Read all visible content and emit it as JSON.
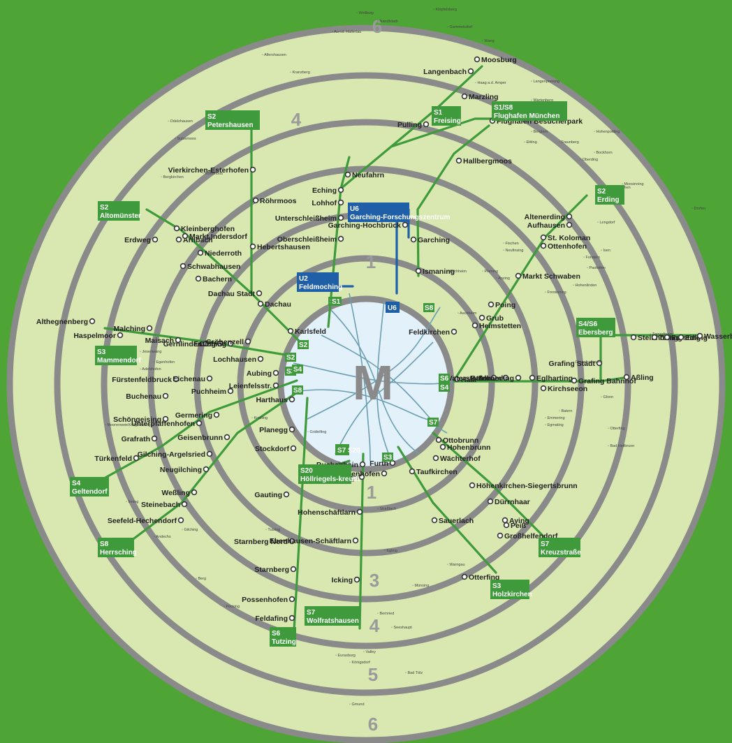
{
  "center_letter": "M",
  "zones": [
    {
      "label": "6",
      "id": "top"
    },
    {
      "label": "4",
      "id": "n"
    },
    {
      "label": "1",
      "id": "ne"
    },
    {
      "label": "1",
      "id": "s"
    },
    {
      "label": "3",
      "id": "s3"
    },
    {
      "label": "4",
      "id": "s4"
    },
    {
      "label": "5",
      "id": "s5"
    },
    {
      "label": "6",
      "id": "bottom"
    }
  ],
  "colors": {
    "background": "#4fa436",
    "ring_fill": "#d8e8b0",
    "center": "#e2f1fa",
    "sbahn": "#3e9a3a",
    "ubahn": "#1f5fa8",
    "ring": "#8a8a8a"
  },
  "terminal_badges": [
    {
      "id": "moosburg-none",
      "line": "",
      "name": ""
    },
    {
      "id": "petershausen",
      "line": "S2",
      "name": "Petershausen"
    },
    {
      "id": "freising",
      "line": "S1",
      "name": "Freising"
    },
    {
      "id": "flughafen",
      "line": "S1/S8",
      "name": "Flughafen München"
    },
    {
      "id": "erding",
      "line": "S2",
      "name": "Erding"
    },
    {
      "id": "altomuenster",
      "line": "S2",
      "name": "Altomünster"
    },
    {
      "id": "garching",
      "line": "U6",
      "name": "Garching-Forschungszentrum"
    },
    {
      "id": "feldmoching",
      "line": "U2",
      "name": "Feldmoching"
    },
    {
      "id": "u6",
      "line": "U6",
      "name": ""
    },
    {
      "id": "ebersberg",
      "line": "S4/S6",
      "name": "Ebersberg"
    },
    {
      "id": "mammendorf",
      "line": "S3",
      "name": "Mammendorf"
    },
    {
      "id": "geltendorf",
      "line": "S4",
      "name": "Geltendorf"
    },
    {
      "id": "herrsching",
      "line": "S8",
      "name": "Herrsching"
    },
    {
      "id": "tutzing",
      "line": "S6",
      "name": "Tutzing"
    },
    {
      "id": "wolfratshausen",
      "line": "S7",
      "name": "Wolfratshausen"
    },
    {
      "id": "holzkirchen",
      "line": "S3",
      "name": "Holzkirchen"
    },
    {
      "id": "kreuzstrasse",
      "line": "S7",
      "name": "Kreuzstraße"
    },
    {
      "id": "hoellriegelskreuth",
      "line": "S20",
      "name": "Höllriegels-kreuth"
    },
    {
      "id": "s20",
      "line": "S7 S20",
      "name": ""
    }
  ],
  "line_badges": [
    "S1",
    "S8",
    "S2",
    "S2",
    "S3",
    "S4",
    "S8",
    "S6",
    "S4",
    "S3",
    "S7",
    "S1"
  ],
  "stations": [
    {
      "name": "Moosburg"
    },
    {
      "name": "Langenbach"
    },
    {
      "name": "Marzling"
    },
    {
      "name": "Pulling"
    },
    {
      "name": "Flughafen Besucherpark"
    },
    {
      "name": "Hallbergmoos"
    },
    {
      "name": "Neufahrn"
    },
    {
      "name": "Eching"
    },
    {
      "name": "Lohhof"
    },
    {
      "name": "Unterschleißheim"
    },
    {
      "name": "Oberschleißheim"
    },
    {
      "name": "Garching-Hochbrück"
    },
    {
      "name": "Garching"
    },
    {
      "name": "Ismaning"
    },
    {
      "name": "Altenerding"
    },
    {
      "name": "Aufhausen"
    },
    {
      "name": "St. Koloman"
    },
    {
      "name": "Ottenhofen"
    },
    {
      "name": "Markt Schwaben"
    },
    {
      "name": "Poing"
    },
    {
      "name": "Grub"
    },
    {
      "name": "Heimstetten"
    },
    {
      "name": "Feldkirchen"
    },
    {
      "name": "Vierkirchen-Esterhofen"
    },
    {
      "name": "Röhrmoos"
    },
    {
      "name": "Hebertshausen"
    },
    {
      "name": "Dachau Stadt"
    },
    {
      "name": "Dachau"
    },
    {
      "name": "Karlsfeld"
    },
    {
      "name": "Kleinberghofen"
    },
    {
      "name": "Erdweg"
    },
    {
      "name": "Arnbach"
    },
    {
      "name": "Markt Indersdorf"
    },
    {
      "name": "Niederroth"
    },
    {
      "name": "Schwabhausen"
    },
    {
      "name": "Bachern"
    },
    {
      "name": "Althegnenberg"
    },
    {
      "name": "Haspelmoor"
    },
    {
      "name": "Malching"
    },
    {
      "name": "Maisach"
    },
    {
      "name": "Gernlinden"
    },
    {
      "name": "Esting"
    },
    {
      "name": "Olching"
    },
    {
      "name": "Gröbenzell"
    },
    {
      "name": "Lochhausen"
    },
    {
      "name": "Fürstenfeldbruck"
    },
    {
      "name": "Buchenau"
    },
    {
      "name": "Eichenau"
    },
    {
      "name": "Puchheim"
    },
    {
      "name": "Aubing"
    },
    {
      "name": "Leienfelsstr."
    },
    {
      "name": "Harthaus"
    },
    {
      "name": "Schöngeising"
    },
    {
      "name": "Grafrath"
    },
    {
      "name": "Türkenfeld"
    },
    {
      "name": "Germering"
    },
    {
      "name": "Unterpfaffenhofen"
    },
    {
      "name": "Geisenbrunn"
    },
    {
      "name": "Gilching-Argelsried"
    },
    {
      "name": "Neugilching"
    },
    {
      "name": "Weßling"
    },
    {
      "name": "Steinebach"
    },
    {
      "name": "Seefeld-Hechendorf"
    },
    {
      "name": "Planegg"
    },
    {
      "name": "Stockdorf"
    },
    {
      "name": "Gauting"
    },
    {
      "name": "Starnberg Nord"
    },
    {
      "name": "Starnberg"
    },
    {
      "name": "Possenhofen"
    },
    {
      "name": "Feldafing"
    },
    {
      "name": "Buchenhain"
    },
    {
      "name": "Baierbrunn"
    },
    {
      "name": "Hohenschäftlarn"
    },
    {
      "name": "Ebenhausen-Schäftlarn"
    },
    {
      "name": "Icking"
    },
    {
      "name": "Deisenhofen"
    },
    {
      "name": "Furth"
    },
    {
      "name": "Taufkirchen"
    },
    {
      "name": "Sauerlach"
    },
    {
      "name": "Otterfing"
    },
    {
      "name": "Ottobrunn"
    },
    {
      "name": "Hohenbrunn"
    },
    {
      "name": "Wächterhof"
    },
    {
      "name": "Höhenkirchen-Siegertsbrunn"
    },
    {
      "name": "Dürrnhaar"
    },
    {
      "name": "Aying"
    },
    {
      "name": "Peiß"
    },
    {
      "name": "Großhelfendorf"
    },
    {
      "name": "Haar"
    },
    {
      "name": "Vaterstetten"
    },
    {
      "name": "Baldham"
    },
    {
      "name": "Zorneding"
    },
    {
      "name": "Eglharting"
    },
    {
      "name": "Kirchseeon"
    },
    {
      "name": "Grafing Bahnhof"
    },
    {
      "name": "Grafing Stadt"
    },
    {
      "name": "Aßling"
    },
    {
      "name": "Steinhöring"
    },
    {
      "name": "Tulling"
    },
    {
      "name": "Forsting"
    },
    {
      "name": "Edling"
    },
    {
      "name": "Wasserburg (Inn) Bhf."
    }
  ],
  "small_places": [
    "Weilbutg",
    "Klöpfelsberg",
    "Nandlstadt",
    "Gammelsdorf",
    "Au i.d. Hallertau",
    "Wang",
    "Kranzberg",
    "Allershausen",
    "Haag a.d. Amper",
    "Langenpreising",
    "Wartenberg",
    "Berglern",
    "Eitting",
    "Fraunberg",
    "Hohenpolding",
    "Bockhorn",
    "Oberding",
    "Moosinning",
    "Forstern",
    "Pastetten",
    "Isen",
    "Lengdorf",
    "Walpertskirchen",
    "Dorfen",
    "Fischen",
    "Neufinsing",
    "Kirchheim",
    "Aschheim",
    "Pliening",
    "Anzing",
    "Forstinning",
    "Hohenlinden",
    "Röhrmoos",
    "Bergkirchen",
    "Sulzemoos",
    "Odelzhausen",
    "Egenhofen",
    "Adelshofen",
    "Jesenwang",
    "Moorenweis",
    "Kottgeisering",
    "Inning",
    "Andechs",
    "Gilching",
    "Krailling",
    "Gräfelfing",
    "Pullach",
    "Grünwald",
    "Straßlach",
    "Egling",
    "Münsing",
    "Berg",
    "Pöcking",
    "Tutzing",
    "Bernried",
    "Seeshaupt",
    "Eurasburg",
    "Königsdorf",
    "Bad Tölz",
    "Gmund",
    "Warngau",
    "Valley",
    "Otterfing",
    "Bad Heilbrunn",
    "Glonn",
    "Baiern",
    "Emmering",
    "Egmating",
    "Oberpframmern",
    "Zornedinger",
    "Moosach",
    "Steinhöring"
  ]
}
